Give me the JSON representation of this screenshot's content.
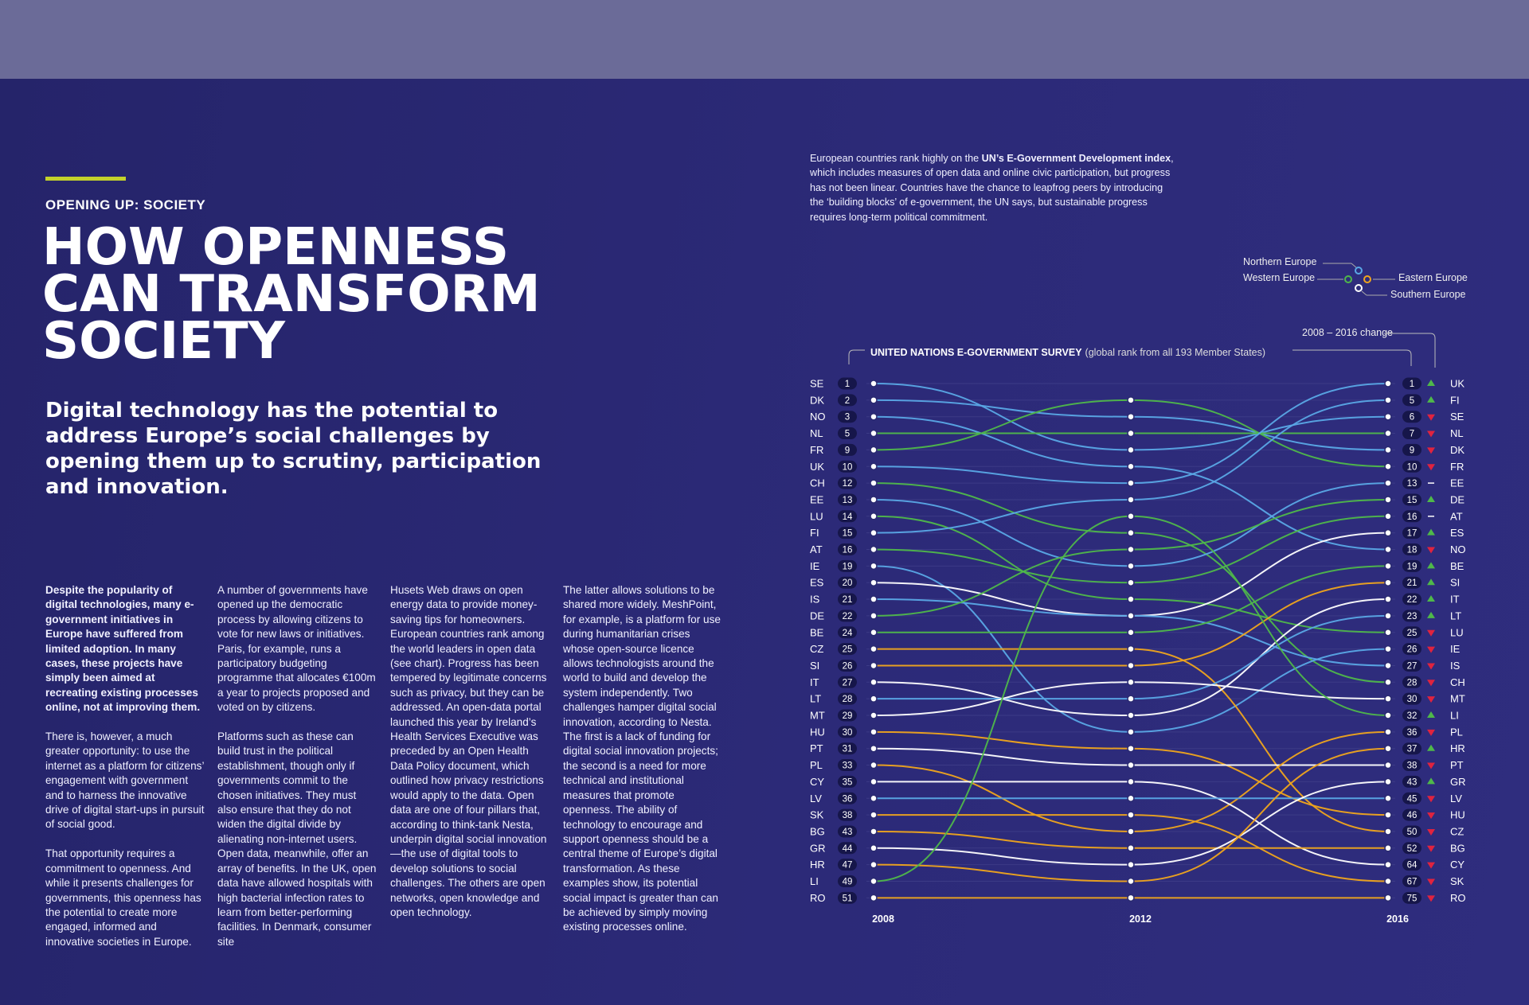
{
  "article": {
    "kicker": "OPENING UP: SOCIETY",
    "headline_lines": [
      "HOW OPENNESS",
      "CAN TRANSFORM",
      "SOCIETY"
    ],
    "standfirst": "Digital technology has the potential to address Europe’s social challenges by opening them up to scrutiny, participation and innovation.",
    "col1": {
      "lead": "Despite the popularity of digital technologies, many e-government initiatives in Europe have suffered from limited adoption. In many cases, these projects have simply been aimed at recreating existing processes online, not at improving them.",
      "p2": "There is, however, a much greater opportunity: to use the internet as a platform for citizens’ engagement with government and to harness the innovative drive of digital start-ups in pursuit of social good.",
      "p3": "That opportunity requires a commitment to openness. And while it presents challenges for governments, this openness has the potential to create more engaged, informed and innovative societies in Europe."
    },
    "col2": {
      "p1": "A number of governments have opened up the democratic process by allowing citizens to vote for new laws or initiatives. Paris, for example, runs a participatory budgeting programme that allocates €100m a year to projects proposed and voted on by citizens.",
      "p2": "Platforms such as these can build trust in the political establishment, though only if governments commit to the chosen initiatives. They must also ensure that they do not widen the digital divide by alienating non-internet users. Open data, meanwhile, offer an array of benefits. In the UK, open data have allowed hospitals with high bacterial infection rates to learn from better-performing facilities. In Denmark, consumer site"
    },
    "col3": "Husets Web draws on open energy data to provide money-saving tips for homeowners. European countries rank among the world leaders in open data (see chart). Progress has been tempered by legitimate concerns such as privacy, but they can be addressed. An open-data portal launched this year by Ireland’s Health Services Executive was preceded by an Open Health Data Policy document, which outlined how privacy restrictions would apply to the data. Open data are one of four pillars that, according to think-tank Nesta, underpin digital social innovation—the use of digital tools to develop solutions to social challenges. The others are open networks, open knowledge and open technology.",
    "col4": "The latter allows solutions to be shared more widely. MeshPoint, for example, is a platform for use during humanitarian crises whose open-source licence allows technologists around the world to build and develop the system independently. Two challenges hamper digital social innovation, according to Nesta. The first is a lack of funding for digital social innovation projects; the second is a need for more technical and institutional measures that promote openness. The ability of technology to encourage and support openness should be a central theme of Europe’s digital transformation. As these examples show, its potential social impact is greater than can be achieved by simply moving existing processes online."
  },
  "intro": {
    "pre": "European countries rank highly on the ",
    "bold": "UN’s E-Government Development index",
    "post": ", which includes measures of open data and online civic participation, but progress has not been linear. Countries have the chance to leapfrog peers by introducing the ‘building blocks’ of e-government, the UN says, but sustainable progress requires long-term political commitment."
  },
  "legend": {
    "northern": "Northern Europe",
    "western": "Western Europe",
    "eastern": "Eastern Europe",
    "southern": "Southern Europe",
    "change_label": "2008 – 2016 change"
  },
  "colors": {
    "Northern": "#5aa8e6",
    "Western": "#4fb84a",
    "Eastern": "#f0a51c",
    "Southern": "#ffffff",
    "up": "#4fb84a",
    "down": "#e0233f",
    "accent": "#c3d12b"
  },
  "chart_data": {
    "type": "line",
    "title": "UNITED NATIONS E-GOVERNMENT SURVEY",
    "subtitle": "(global rank from all 193 Member States)",
    "x": [
      "2008",
      "2012",
      "2016"
    ],
    "left_order": [
      "SE",
      "DK",
      "NO",
      "NL",
      "FR",
      "UK",
      "CH",
      "EE",
      "LU",
      "FI",
      "AT",
      "IE",
      "ES",
      "IS",
      "DE",
      "BE",
      "CZ",
      "SI",
      "IT",
      "LT",
      "MT",
      "HU",
      "PT",
      "PL",
      "CY",
      "LV",
      "SK",
      "BG",
      "GR",
      "HR",
      "LI",
      "RO"
    ],
    "left_ranks": [
      "1",
      "2",
      "3",
      "5",
      "9",
      "10",
      "12",
      "13",
      "14",
      "15",
      "16",
      "19",
      "20",
      "21",
      "22",
      "24",
      "25",
      "26",
      "27",
      "28",
      "29",
      "30",
      "31",
      "33",
      "35",
      "36",
      "38",
      "43",
      "44",
      "47",
      "49",
      "51"
    ],
    "right_order": [
      "UK",
      "FI",
      "SE",
      "NL",
      "DK",
      "FR",
      "EE",
      "DE",
      "AT",
      "ES",
      "NO",
      "BE",
      "SI",
      "IT",
      "LT",
      "LU",
      "IE",
      "IS",
      "CH",
      "MT",
      "LI",
      "PL",
      "HR",
      "PT",
      "GR",
      "LV",
      "HU",
      "CZ",
      "BG",
      "CY",
      "SK",
      "RO"
    ],
    "right_ranks": [
      "1",
      "5",
      "6",
      "7",
      "9",
      "10",
      "13",
      "15",
      "16",
      "17",
      "18",
      "19",
      "21",
      "22",
      "23",
      "25",
      "26",
      "27",
      "28",
      "30",
      "32",
      "36",
      "37",
      "38",
      "43",
      "45",
      "46",
      "50",
      "52",
      "64",
      "67",
      "75"
    ],
    "series": [
      {
        "name": "SE",
        "region": "Northern",
        "slots": [
          0,
          4,
          2
        ],
        "change": "down"
      },
      {
        "name": "DK",
        "region": "Northern",
        "slots": [
          1,
          2,
          4
        ],
        "change": "down"
      },
      {
        "name": "NO",
        "region": "Northern",
        "slots": [
          2,
          5,
          10
        ],
        "change": "down"
      },
      {
        "name": "NL",
        "region": "Western",
        "slots": [
          3,
          3,
          3
        ],
        "change": "down"
      },
      {
        "name": "FR",
        "region": "Western",
        "slots": [
          4,
          1,
          5
        ],
        "change": "down"
      },
      {
        "name": "UK",
        "region": "Northern",
        "slots": [
          5,
          6,
          0
        ],
        "change": "up"
      },
      {
        "name": "CH",
        "region": "Western",
        "slots": [
          6,
          9,
          18
        ],
        "change": "down"
      },
      {
        "name": "EE",
        "region": "Northern",
        "slots": [
          7,
          11,
          6
        ],
        "change": "same"
      },
      {
        "name": "LU",
        "region": "Western",
        "slots": [
          8,
          13,
          15
        ],
        "change": "down"
      },
      {
        "name": "FI",
        "region": "Northern",
        "slots": [
          9,
          7,
          1
        ],
        "change": "up"
      },
      {
        "name": "AT",
        "region": "Western",
        "slots": [
          10,
          12,
          8
        ],
        "change": "same"
      },
      {
        "name": "IE",
        "region": "Northern",
        "slots": [
          11,
          21,
          16
        ],
        "change": "down"
      },
      {
        "name": "ES",
        "region": "Southern",
        "slots": [
          12,
          14,
          9
        ],
        "change": "up"
      },
      {
        "name": "IS",
        "region": "Northern",
        "slots": [
          13,
          14,
          17
        ],
        "change": "down"
      },
      {
        "name": "DE",
        "region": "Western",
        "slots": [
          14,
          10,
          7
        ],
        "change": "up"
      },
      {
        "name": "BE",
        "region": "Western",
        "slots": [
          15,
          15,
          11
        ],
        "change": "up"
      },
      {
        "name": "CZ",
        "region": "Eastern",
        "slots": [
          16,
          16,
          27
        ],
        "change": "down"
      },
      {
        "name": "SI",
        "region": "Eastern",
        "slots": [
          17,
          17,
          12
        ],
        "change": "up"
      },
      {
        "name": "IT",
        "region": "Southern",
        "slots": [
          18,
          20,
          13
        ],
        "change": "up"
      },
      {
        "name": "LT",
        "region": "Northern",
        "slots": [
          19,
          19,
          14
        ],
        "change": "up"
      },
      {
        "name": "MT",
        "region": "Southern",
        "slots": [
          20,
          18,
          19
        ],
        "change": "down"
      },
      {
        "name": "HU",
        "region": "Eastern",
        "slots": [
          21,
          22,
          26
        ],
        "change": "down"
      },
      {
        "name": "PT",
        "region": "Southern",
        "slots": [
          22,
          23,
          23
        ],
        "change": "down"
      },
      {
        "name": "PL",
        "region": "Eastern",
        "slots": [
          23,
          27,
          21
        ],
        "change": "down"
      },
      {
        "name": "CY",
        "region": "Southern",
        "slots": [
          24,
          24,
          29
        ],
        "change": "down"
      },
      {
        "name": "LV",
        "region": "Northern",
        "slots": [
          25,
          25,
          25
        ],
        "change": "down"
      },
      {
        "name": "SK",
        "region": "Eastern",
        "slots": [
          26,
          26,
          30
        ],
        "change": "down"
      },
      {
        "name": "BG",
        "region": "Eastern",
        "slots": [
          27,
          28,
          28
        ],
        "change": "down"
      },
      {
        "name": "GR",
        "region": "Southern",
        "slots": [
          28,
          29,
          24
        ],
        "change": "up"
      },
      {
        "name": "HR",
        "region": "Eastern",
        "slots": [
          29,
          30,
          22
        ],
        "change": "up"
      },
      {
        "name": "LI",
        "region": "Western",
        "slots": [
          30,
          8,
          20
        ],
        "change": "up"
      },
      {
        "name": "RO",
        "region": "Eastern",
        "slots": [
          31,
          31,
          31
        ],
        "change": "down"
      }
    ]
  }
}
